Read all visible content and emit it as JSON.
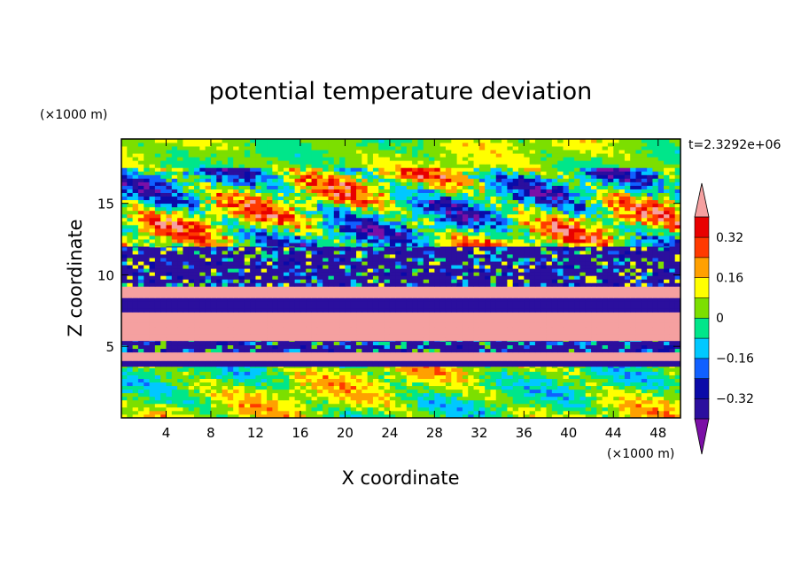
{
  "chart_data": {
    "type": "heatmap",
    "title": "potential temperature deviation",
    "xlabel": "X coordinate",
    "ylabel": "Z coordinate",
    "x_unit": "(×1000 m)",
    "y_unit": "(×1000 m)",
    "time_label": "t=2.3292e+06",
    "xlim": [
      0,
      50
    ],
    "ylim": [
      0,
      19.5
    ],
    "x_ticks": [
      "4",
      "8",
      "12",
      "16",
      "20",
      "24",
      "28",
      "32",
      "36",
      "40",
      "44",
      "48"
    ],
    "y_ticks": [
      "5",
      "10",
      "15"
    ],
    "colorbar": {
      "levels": [
        -0.4,
        -0.32,
        -0.24,
        -0.16,
        -0.08,
        0,
        0.08,
        0.16,
        0.24,
        0.32,
        0.4
      ],
      "tick_labels": [
        "0.32",
        "0.16",
        "0",
        "−0.16",
        "−0.32"
      ],
      "colors": [
        "#7b0fa6",
        "#2b0f9e",
        "#0a0aa8",
        "#1060ff",
        "#00c8ff",
        "#00e68a",
        "#7cdf00",
        "#ffff00",
        "#ffa000",
        "#ff3a00",
        "#e80000",
        "#f5a0a0"
      ],
      "extend": "both"
    },
    "bands_note": "",
    "bands": [
      {
        "z": [
          0.0,
          4.2
        ],
        "level": [
          -0.16,
          0.24
        ],
        "pattern": "cells"
      },
      {
        "z": [
          3.6,
          4.2
        ],
        "level": [
          -0.4,
          -0.32
        ],
        "pattern": "solid"
      },
      {
        "z": [
          4.0,
          4.6
        ],
        "level": [
          0.4,
          0.4
        ],
        "pattern": "solid"
      },
      {
        "z": [
          4.6,
          5.4
        ],
        "level": [
          -0.4,
          0.08
        ],
        "pattern": "mixed"
      },
      {
        "z": [
          5.4,
          7.4
        ],
        "level": [
          0.4,
          0.4
        ],
        "pattern": "solid"
      },
      {
        "z": [
          7.4,
          8.4
        ],
        "level": [
          -0.4,
          -0.32
        ],
        "pattern": "solid"
      },
      {
        "z": [
          8.4,
          9.2
        ],
        "level": [
          0.4,
          0.4
        ],
        "pattern": "solid"
      },
      {
        "z": [
          9.2,
          12.0
        ],
        "level": [
          -0.4,
          0.16
        ],
        "pattern": "mixed"
      },
      {
        "z": [
          12.0,
          17.5
        ],
        "level": [
          -0.4,
          0.4
        ],
        "pattern": "cells"
      },
      {
        "z": [
          17.5,
          19.5
        ],
        "level": [
          -0.08,
          0.16
        ],
        "pattern": "cells"
      }
    ]
  }
}
